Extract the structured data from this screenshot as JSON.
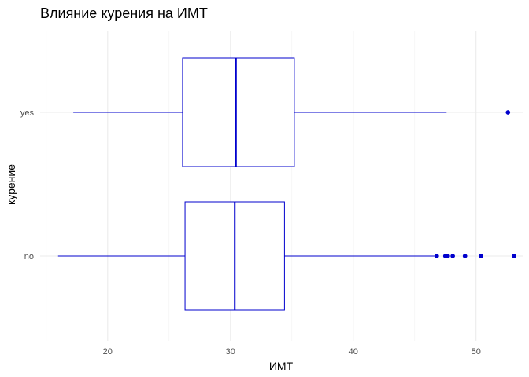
{
  "chart_data": {
    "type": "boxplot",
    "orientation": "horizontal",
    "title": "Влияние курения на ИМТ",
    "xlabel": "ИМТ",
    "ylabel": "курение",
    "xlim": [
      14.5,
      53.8
    ],
    "x_ticks": [
      20,
      30,
      40,
      50
    ],
    "grid": true,
    "color": "#0000cd",
    "categories": [
      "no",
      "yes"
    ],
    "boxes": [
      {
        "category": "no",
        "whisker_low": 15.96,
        "q1": 26.3,
        "median": 30.35,
        "q3": 34.4,
        "whisker_high": 46.7,
        "outliers": [
          46.8,
          47.5,
          47.7,
          48.1,
          49.1,
          50.4,
          53.1
        ]
      },
      {
        "category": "yes",
        "whisker_low": 17.2,
        "q1": 26.1,
        "median": 30.45,
        "q3": 35.2,
        "whisker_high": 47.6,
        "outliers": [
          52.6
        ]
      }
    ]
  }
}
